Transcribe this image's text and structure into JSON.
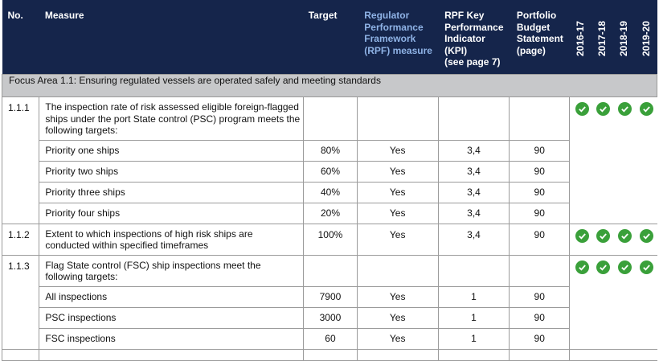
{
  "header": {
    "no": "No.",
    "measure": "Measure",
    "target": "Target",
    "rpf": [
      "Regulator",
      "Performance",
      "Framework",
      "(RPF) measure"
    ],
    "kpi": [
      "RPF Key",
      "Performance",
      "Indicator",
      "(KPI)",
      "(see page 7)"
    ],
    "pbs": [
      "Portfolio",
      "Budget",
      "Statement",
      "(page)"
    ],
    "years": [
      "2016-17",
      "2017-18",
      "2018-19",
      "2019-20"
    ]
  },
  "focus": "Focus Area 1.1: Ensuring regulated vessels are operated safely and meeting standards",
  "rows": [
    {
      "no": "1.1.1",
      "measure": "The inspection rate of risk assessed eligible foreign-flagged ships under the port State control (PSC) program meets the following targets:",
      "subs": [
        {
          "measure": "Priority one ships",
          "target": "80%",
          "rpf": "Yes",
          "kpi": "3,4",
          "pbs": "90"
        },
        {
          "measure": "Priority two ships",
          "target": "60%",
          "rpf": "Yes",
          "kpi": "3,4",
          "pbs": "90"
        },
        {
          "measure": "Priority three ships",
          "target": "40%",
          "rpf": "Yes",
          "kpi": "3,4",
          "pbs": "90"
        },
        {
          "measure": "Priority four ships",
          "target": "20%",
          "rpf": "Yes",
          "kpi": "3,4",
          "pbs": "90"
        }
      ]
    },
    {
      "no": "1.1.2",
      "measure": "Extent to which inspections of high risk ships are conducted within specified timeframes",
      "target": "100%",
      "rpf": "Yes",
      "kpi": "3,4",
      "pbs": "90"
    },
    {
      "no": "1.1.3",
      "measure": "Flag State control (FSC) ship inspections meet the following targets:",
      "subs": [
        {
          "measure": "All inspections",
          "target": "7900",
          "rpf": "Yes",
          "kpi": "1",
          "pbs": "90"
        },
        {
          "measure": "PSC inspections",
          "target": "3000",
          "rpf": "Yes",
          "kpi": "1",
          "pbs": "90"
        },
        {
          "measure": "FSC inspections",
          "target": "60",
          "rpf": "Yes",
          "kpi": "1",
          "pbs": "90"
        }
      ]
    }
  ],
  "colors": {
    "header_bg": "#15254b",
    "rpf_header": "#8fb3e6",
    "focus_bg": "#c7c8ca",
    "tick": "#3aa03a"
  },
  "icons": {
    "status": "check-circle-icon"
  }
}
